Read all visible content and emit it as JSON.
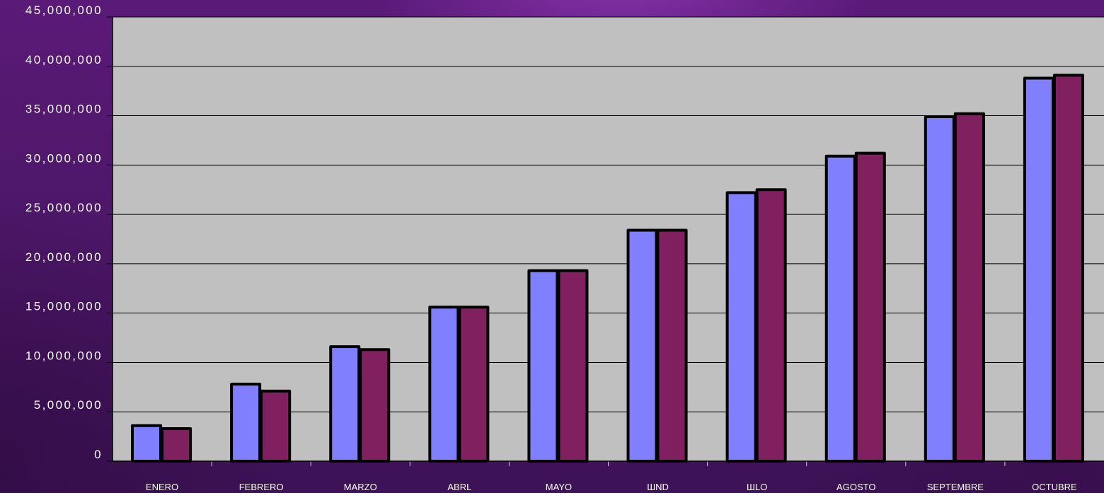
{
  "chart_data": {
    "type": "bar",
    "title": "",
    "xlabel": "",
    "ylabel": "",
    "ylim": [
      0,
      45000000
    ],
    "y_ticks": [
      {
        "value": 0,
        "label": "0"
      },
      {
        "value": 5000000,
        "label": "5,000,000"
      },
      {
        "value": 10000000,
        "label": "10,000,000"
      },
      {
        "value": 15000000,
        "label": "15,000,000"
      },
      {
        "value": 20000000,
        "label": "20,000,000"
      },
      {
        "value": 25000000,
        "label": "25,000,000"
      },
      {
        "value": 30000000,
        "label": "30,000,000"
      },
      {
        "value": 35000000,
        "label": "35,000,000"
      },
      {
        "value": 40000000,
        "label": "40,000,000"
      },
      {
        "value": 45000000,
        "label": "45,000,000"
      }
    ],
    "categories": [
      "ENERO",
      "FEBRERO",
      "MARZO",
      "ABRL",
      "MAYO",
      "ШND",
      "ШLO",
      "AGOSTO",
      "SEPTEMBRE",
      "OCTUBRE"
    ],
    "series": [
      {
        "color": "#8080ff",
        "values": [
          3600000,
          7800000,
          11600000,
          15600000,
          19300000,
          23400000,
          27200000,
          30900000,
          34900000,
          38800000
        ]
      },
      {
        "color": "#80205f",
        "values": [
          3300000,
          7100000,
          11300000,
          15600000,
          19300000,
          23400000,
          27500000,
          31200000,
          35200000,
          39100000
        ]
      }
    ],
    "grid": true,
    "legend": "none",
    "plot_background": "#c0c0c0"
  }
}
